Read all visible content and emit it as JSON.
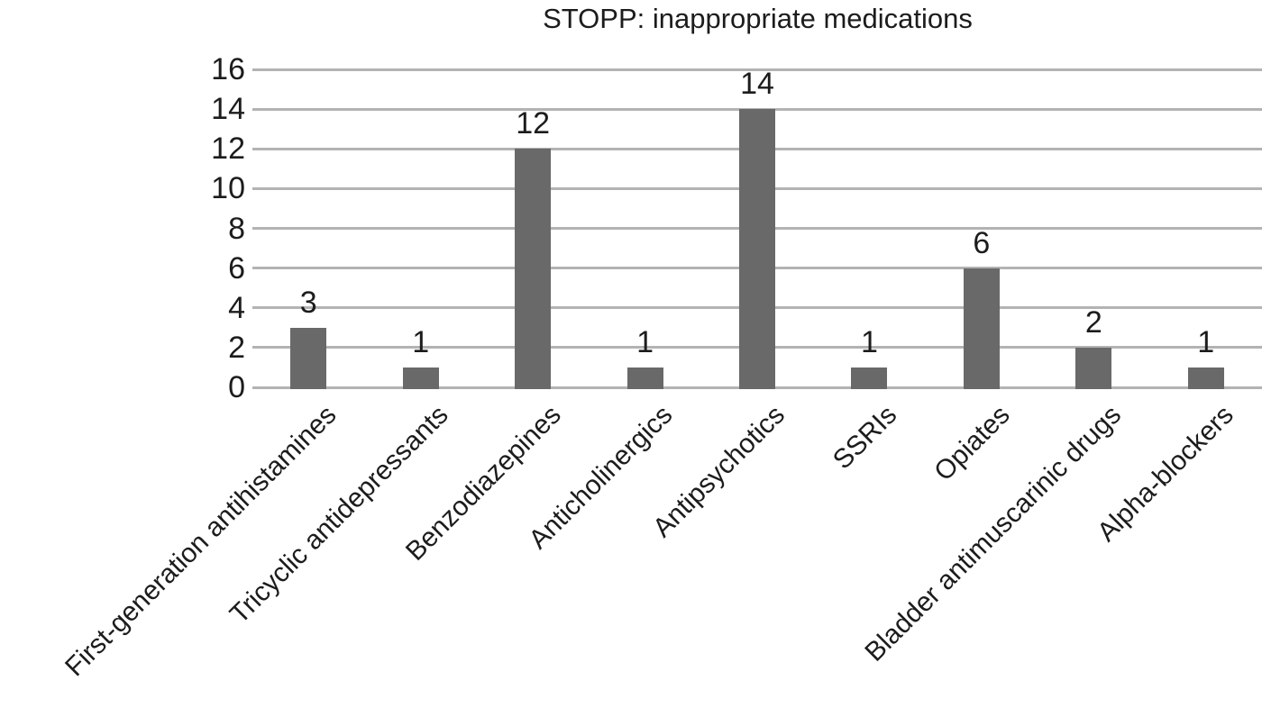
{
  "chart_data": {
    "type": "bar",
    "title": "STOPP: inappropriate medications",
    "categories": [
      "First-generation antihistamines",
      "Tricyclic antidepressants",
      "Benzodiazepines",
      "Anticholinergics",
      "Antipsychotics",
      "SSRIs",
      "Opiates",
      "Bladder antimuscarinic drugs",
      "Alpha-blockers"
    ],
    "values": [
      3,
      1,
      12,
      1,
      14,
      1,
      6,
      2,
      1
    ],
    "xlabel": "",
    "ylabel": "",
    "ylim": [
      0,
      16
    ],
    "yticks": [
      0,
      2,
      4,
      6,
      8,
      10,
      12,
      14,
      16
    ],
    "grid": true,
    "legend": false,
    "x_tick_rotation_deg": 45,
    "colors": {
      "bar": "#696969",
      "gridline": "#b3b3b3",
      "text": "#1c1c1c",
      "background": "#ffffff"
    }
  }
}
